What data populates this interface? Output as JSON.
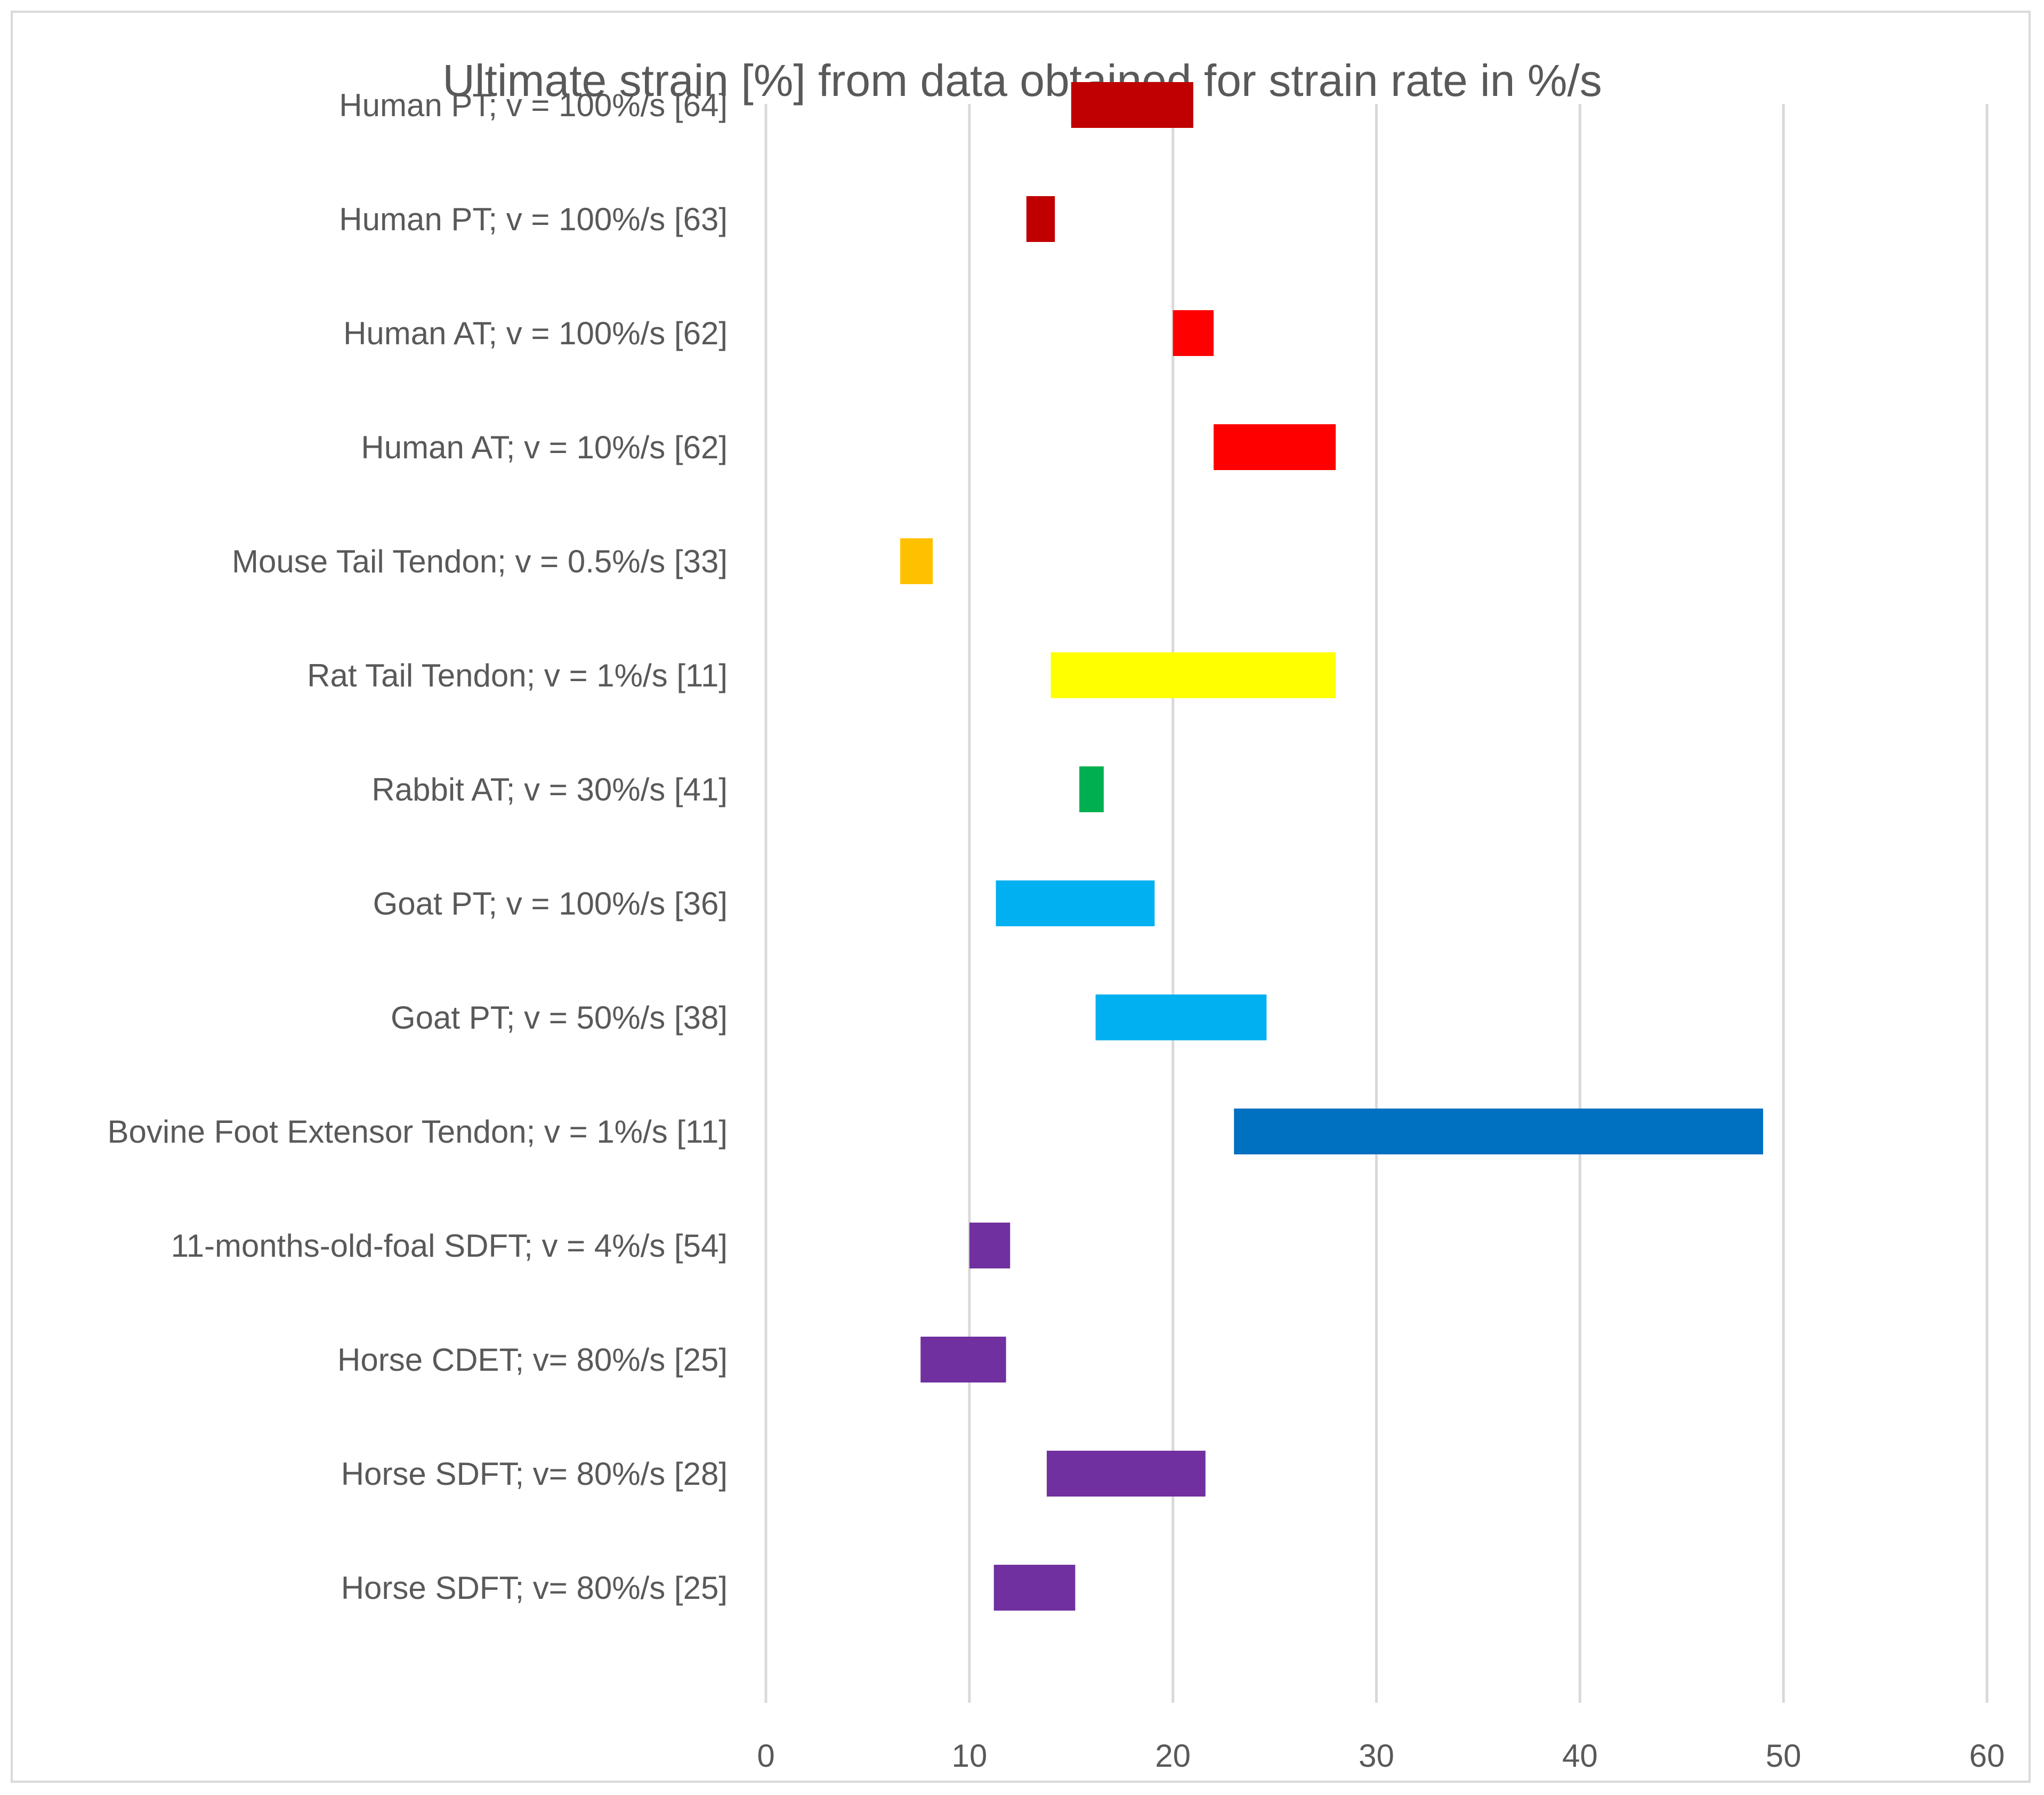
{
  "chart_data": {
    "type": "bar",
    "orientation": "horizontal",
    "subtype": "floating-range",
    "title": "Ultimate strain [%] from data obtained for strain rate in %/s",
    "xlabel": "",
    "ylabel": "",
    "xlim": [
      0,
      60
    ],
    "xticks": [
      0,
      10,
      20,
      30,
      40,
      50,
      60
    ],
    "grid": true,
    "legend": "none",
    "categories": [
      "Human PT; v = 100%/s [64]",
      "Human PT; v = 100%/s [63]",
      "Human AT; v = 100%/s [62]",
      "Human AT; v = 10%/s [62]",
      "Mouse Tail Tendon; v = 0.5%/s [33]",
      "Rat Tail Tendon; v = 1%/s [11]",
      "Rabbit AT; v = 30%/s [41]",
      "Goat PT; v = 100%/s [36]",
      "Goat PT; v = 50%/s [38]",
      "Bovine Foot Extensor Tendon; v = 1%/s [11]",
      "11-months-old-foal SDFT; v = 4%/s [54]",
      "Horse CDET; v= 80%/s [25]",
      "Horse SDFT; v= 80%/s [28]",
      "Horse SDFT; v= 80%/s [25]"
    ],
    "ranges": [
      [
        15.0,
        21.0
      ],
      [
        12.8,
        14.2
      ],
      [
        20.0,
        22.0
      ],
      [
        22.0,
        28.0
      ],
      [
        6.6,
        8.2
      ],
      [
        14.0,
        28.0
      ],
      [
        15.4,
        16.6
      ],
      [
        11.3,
        19.1
      ],
      [
        16.2,
        24.6
      ],
      [
        23.0,
        49.0
      ],
      [
        10.0,
        12.0
      ],
      [
        7.6,
        11.8
      ],
      [
        13.8,
        21.6
      ],
      [
        11.2,
        15.2
      ]
    ],
    "colors": [
      "#c00000",
      "#c00000",
      "#ff0000",
      "#ff0000",
      "#ffc000",
      "#ffff00",
      "#00b050",
      "#00b0f0",
      "#00b0f0",
      "#0070c0",
      "#7030a0",
      "#7030a0",
      "#7030a0",
      "#7030a0"
    ]
  }
}
